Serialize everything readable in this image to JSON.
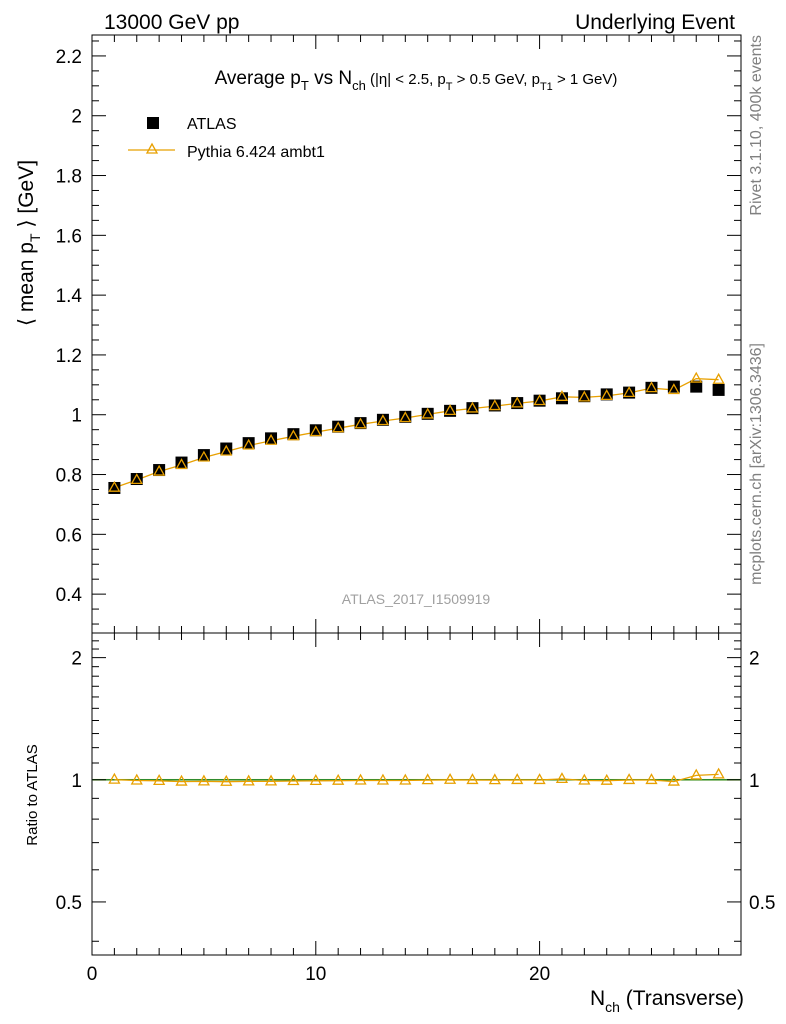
{
  "header": {
    "left": "13000 GeV pp",
    "right": "Underlying Event"
  },
  "side_labels": {
    "rivet": "Rivet 3.1.10,  400k events",
    "mcplots": "mcplots.cern.ch [arXiv:1306.3436]"
  },
  "watermark": "ATLAS_2017_I1509919",
  "colors": {
    "data": "#000000",
    "mc": "#e8a000",
    "ratio_band": "#f5f08a",
    "ratio_line": "#2e8b2e"
  },
  "chart_data": [
    {
      "type": "scatter",
      "panel": "main",
      "title_parts": {
        "a": "Average p",
        "a_sub": "T",
        "b": " vs N",
        "b_sub": "ch",
        "c": " (|η| < 2.5, p",
        "c_sub": "T",
        "d": " > 0.5 GeV, p",
        "d_sub": "T1",
        "e": " > 1 GeV)"
      },
      "ylabel_parts": {
        "a": "⟨ mean p",
        "a_sub": "T",
        "b": " ⟩ [GeV]"
      },
      "xlim": [
        0,
        29
      ],
      "ylim": [
        0.27,
        2.27
      ],
      "yticks": [
        0.4,
        0.6,
        0.8,
        1.0,
        1.2,
        1.4,
        1.6,
        1.8,
        2.0,
        2.2
      ],
      "ytick_labels": [
        "0.4",
        "0.6",
        "0.8",
        "1",
        "1.2",
        "1.4",
        "1.6",
        "1.8",
        "2",
        "2.2"
      ],
      "legend": [
        {
          "name": "ATLAS",
          "marker": "square"
        },
        {
          "name": "Pythia 6.424 ambt1",
          "marker": "triangle-line"
        }
      ],
      "legend_position": "top-left",
      "series": [
        {
          "name": "ATLAS",
          "x": [
            1,
            2,
            3,
            4,
            5,
            6,
            7,
            8,
            9,
            10,
            11,
            12,
            13,
            14,
            15,
            16,
            17,
            18,
            19,
            20,
            21,
            22,
            23,
            24,
            25,
            26,
            27,
            28
          ],
          "values": [
            0.755,
            0.785,
            0.815,
            0.84,
            0.865,
            0.887,
            0.905,
            0.921,
            0.935,
            0.948,
            0.96,
            0.972,
            0.983,
            0.993,
            1.003,
            1.013,
            1.022,
            1.031,
            1.039,
            1.047,
            1.055,
            1.062,
            1.068,
            1.074,
            1.09,
            1.094,
            1.094,
            1.083
          ]
        },
        {
          "name": "Pythia 6.424 ambt1",
          "x": [
            1,
            2,
            3,
            4,
            5,
            6,
            7,
            8,
            9,
            10,
            11,
            12,
            13,
            14,
            15,
            16,
            17,
            18,
            19,
            20,
            21,
            22,
            23,
            24,
            25,
            26,
            27,
            28
          ],
          "values": [
            0.756,
            0.782,
            0.81,
            0.832,
            0.857,
            0.877,
            0.897,
            0.913,
            0.928,
            0.942,
            0.955,
            0.968,
            0.979,
            0.989,
            1.001,
            1.013,
            1.021,
            1.029,
            1.038,
            1.046,
            1.06,
            1.058,
            1.063,
            1.073,
            1.089,
            1.083,
            1.121,
            1.117
          ]
        }
      ]
    },
    {
      "type": "line",
      "panel": "ratio",
      "ylabel": "Ratio to ATLAS",
      "xlabel_parts": {
        "a": "N",
        "a_sub": "ch",
        "b": " (Transverse)"
      },
      "xlim": [
        0,
        29
      ],
      "ylim": [
        0.37,
        2.3
      ],
      "xticks": [
        0,
        10,
        20
      ],
      "xtick_labels": [
        "0",
        "10",
        "20"
      ],
      "yticks": [
        0.5,
        1,
        2
      ],
      "ytick_labels": [
        "0.5",
        "1",
        "2"
      ],
      "scale": "log",
      "reference": 1,
      "series": [
        {
          "name": "Pythia 6.424 ambt1",
          "x": [
            1,
            2,
            3,
            4,
            5,
            6,
            7,
            8,
            9,
            10,
            11,
            12,
            13,
            14,
            15,
            16,
            17,
            18,
            19,
            20,
            21,
            22,
            23,
            24,
            25,
            26,
            27,
            28
          ],
          "values": [
            1.001,
            0.996,
            0.994,
            0.99,
            0.991,
            0.989,
            0.991,
            0.991,
            0.993,
            0.994,
            0.995,
            0.996,
            0.996,
            0.996,
            0.998,
            1.0,
            0.999,
            0.998,
            0.999,
            0.999,
            1.005,
            0.996,
            0.995,
            0.999,
            0.999,
            0.99,
            1.025,
            1.031
          ]
        }
      ]
    }
  ]
}
